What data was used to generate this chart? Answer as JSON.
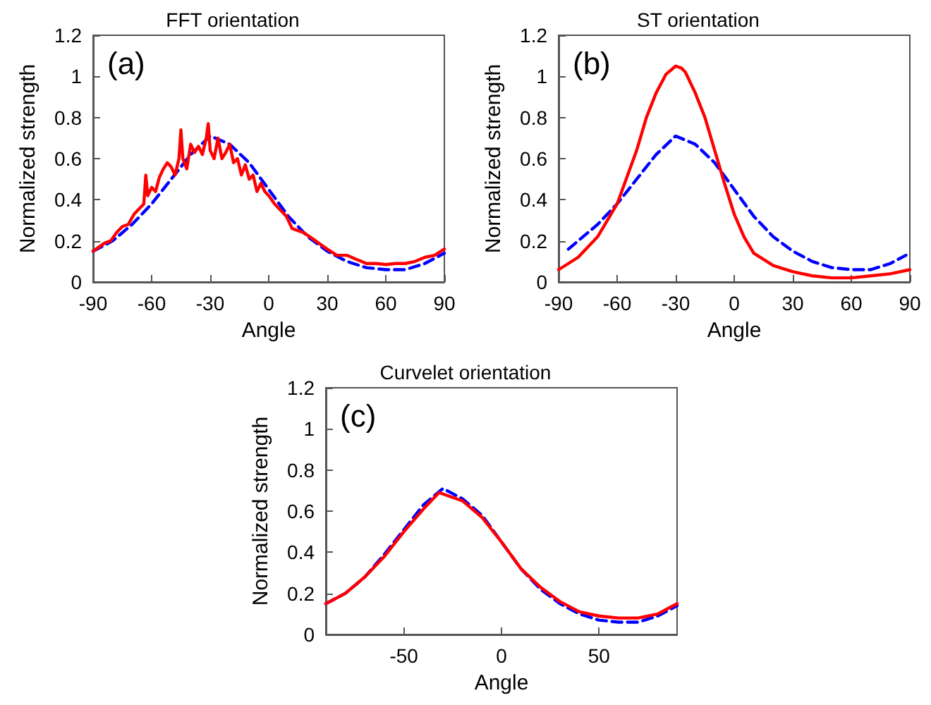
{
  "chart_data": [
    {
      "type": "line",
      "title": "FFT orientation",
      "xlabel": "Angle",
      "ylabel": "Normalized strength",
      "annotations": [
        "(a)"
      ],
      "xlim": [
        -90,
        90
      ],
      "xticks": [
        -90,
        -60,
        -30,
        0,
        30,
        60,
        90
      ],
      "ylim": [
        0,
        1.2
      ],
      "yticks": [
        0,
        0.2,
        0.4,
        0.6,
        0.8,
        1,
        1.2
      ],
      "grid": false,
      "marker": "none",
      "series": [
        {
          "color": "#0000ff",
          "line_style": "dashed",
          "x": [
            -90,
            -80,
            -70,
            -60,
            -50,
            -40,
            -30,
            -20,
            -10,
            0,
            10,
            20,
            30,
            40,
            50,
            60,
            70,
            80,
            90
          ],
          "values": [
            0.15,
            0.2,
            0.28,
            0.38,
            0.5,
            0.62,
            0.71,
            0.67,
            0.58,
            0.45,
            0.32,
            0.22,
            0.15,
            0.1,
            0.07,
            0.06,
            0.06,
            0.09,
            0.14
          ]
        },
        {
          "color": "#ff0000",
          "line_style": "solid",
          "x": [
            -90,
            -87,
            -84,
            -81,
            -78,
            -75,
            -72,
            -69,
            -66,
            -64,
            -63,
            -62,
            -60,
            -58,
            -56,
            -54,
            -52,
            -50,
            -48,
            -46,
            -45,
            -44,
            -42,
            -40,
            -38,
            -36,
            -34,
            -32,
            -31,
            -30,
            -28,
            -26,
            -24,
            -22,
            -20,
            -18,
            -16,
            -14,
            -12,
            -10,
            -8,
            -6,
            -4,
            -2,
            0,
            3,
            6,
            9,
            12,
            15,
            18,
            21,
            24,
            27,
            30,
            35,
            40,
            45,
            50,
            55,
            60,
            65,
            70,
            75,
            80,
            85,
            90
          ],
          "values": [
            0.15,
            0.17,
            0.19,
            0.2,
            0.24,
            0.27,
            0.28,
            0.33,
            0.36,
            0.38,
            0.52,
            0.42,
            0.46,
            0.44,
            0.51,
            0.55,
            0.58,
            0.56,
            0.52,
            0.6,
            0.74,
            0.6,
            0.55,
            0.67,
            0.63,
            0.66,
            0.62,
            0.7,
            0.77,
            0.64,
            0.6,
            0.7,
            0.6,
            0.63,
            0.67,
            0.58,
            0.6,
            0.52,
            0.57,
            0.5,
            0.52,
            0.44,
            0.48,
            0.44,
            0.42,
            0.38,
            0.35,
            0.32,
            0.26,
            0.25,
            0.24,
            0.22,
            0.2,
            0.18,
            0.16,
            0.13,
            0.13,
            0.11,
            0.09,
            0.09,
            0.085,
            0.09,
            0.09,
            0.1,
            0.12,
            0.13,
            0.16
          ]
        }
      ]
    },
    {
      "type": "line",
      "title": "ST orientation",
      "xlabel": "Angle",
      "ylabel": "Normalized strength",
      "annotations": [
        "(b)"
      ],
      "xlim": [
        -90,
        90
      ],
      "xticks": [
        -90,
        -60,
        -30,
        0,
        30,
        60,
        90
      ],
      "ylim": [
        0,
        1.2
      ],
      "yticks": [
        0,
        0.2,
        0.4,
        0.6,
        0.8,
        1,
        1.2
      ],
      "grid": false,
      "marker": "none",
      "series": [
        {
          "color": "#0000ff",
          "line_style": "dashed",
          "x": [
            -85,
            -80,
            -70,
            -60,
            -50,
            -40,
            -30,
            -20,
            -10,
            0,
            10,
            20,
            30,
            40,
            50,
            60,
            70,
            80,
            88
          ],
          "values": [
            0.16,
            0.2,
            0.28,
            0.38,
            0.5,
            0.62,
            0.71,
            0.67,
            0.58,
            0.45,
            0.32,
            0.22,
            0.15,
            0.1,
            0.07,
            0.06,
            0.06,
            0.09,
            0.13
          ]
        },
        {
          "color": "#ff0000",
          "line_style": "solid",
          "x": [
            -90,
            -80,
            -70,
            -60,
            -50,
            -45,
            -40,
            -35,
            -30,
            -27,
            -25,
            -20,
            -15,
            -10,
            -5,
            0,
            5,
            10,
            20,
            30,
            40,
            50,
            60,
            70,
            80,
            90
          ],
          "values": [
            0.06,
            0.12,
            0.22,
            0.38,
            0.64,
            0.8,
            0.92,
            1.01,
            1.05,
            1.04,
            1.02,
            0.92,
            0.8,
            0.64,
            0.48,
            0.33,
            0.22,
            0.14,
            0.08,
            0.05,
            0.03,
            0.02,
            0.02,
            0.03,
            0.04,
            0.06
          ]
        }
      ]
    },
    {
      "type": "line",
      "title": "Curvelet orientation",
      "xlabel": "Angle",
      "ylabel": "Normalized strength",
      "annotations": [
        "(c)"
      ],
      "xlim": [
        -90,
        90
      ],
      "xticks": [
        -50,
        0,
        50
      ],
      "ylim": [
        0,
        1.2
      ],
      "yticks": [
        0,
        0.2,
        0.4,
        0.6,
        0.8,
        1,
        1.2
      ],
      "grid": false,
      "marker": "none",
      "series": [
        {
          "color": "#0000ff",
          "line_style": "dashed",
          "x": [
            -90,
            -80,
            -70,
            -60,
            -50,
            -40,
            -30,
            -20,
            -10,
            0,
            10,
            20,
            30,
            40,
            50,
            60,
            70,
            80,
            90
          ],
          "values": [
            0.15,
            0.2,
            0.28,
            0.39,
            0.51,
            0.63,
            0.71,
            0.66,
            0.58,
            0.45,
            0.32,
            0.22,
            0.15,
            0.1,
            0.07,
            0.06,
            0.06,
            0.09,
            0.14
          ]
        },
        {
          "color": "#ff0000",
          "line_style": "solid",
          "x": [
            -90,
            -80,
            -70,
            -60,
            -50,
            -40,
            -32,
            -20,
            -10,
            0,
            10,
            20,
            30,
            40,
            50,
            60,
            70,
            80,
            90
          ],
          "values": [
            0.15,
            0.2,
            0.28,
            0.38,
            0.5,
            0.61,
            0.69,
            0.65,
            0.57,
            0.45,
            0.32,
            0.23,
            0.16,
            0.11,
            0.09,
            0.08,
            0.08,
            0.1,
            0.15
          ]
        }
      ]
    }
  ]
}
